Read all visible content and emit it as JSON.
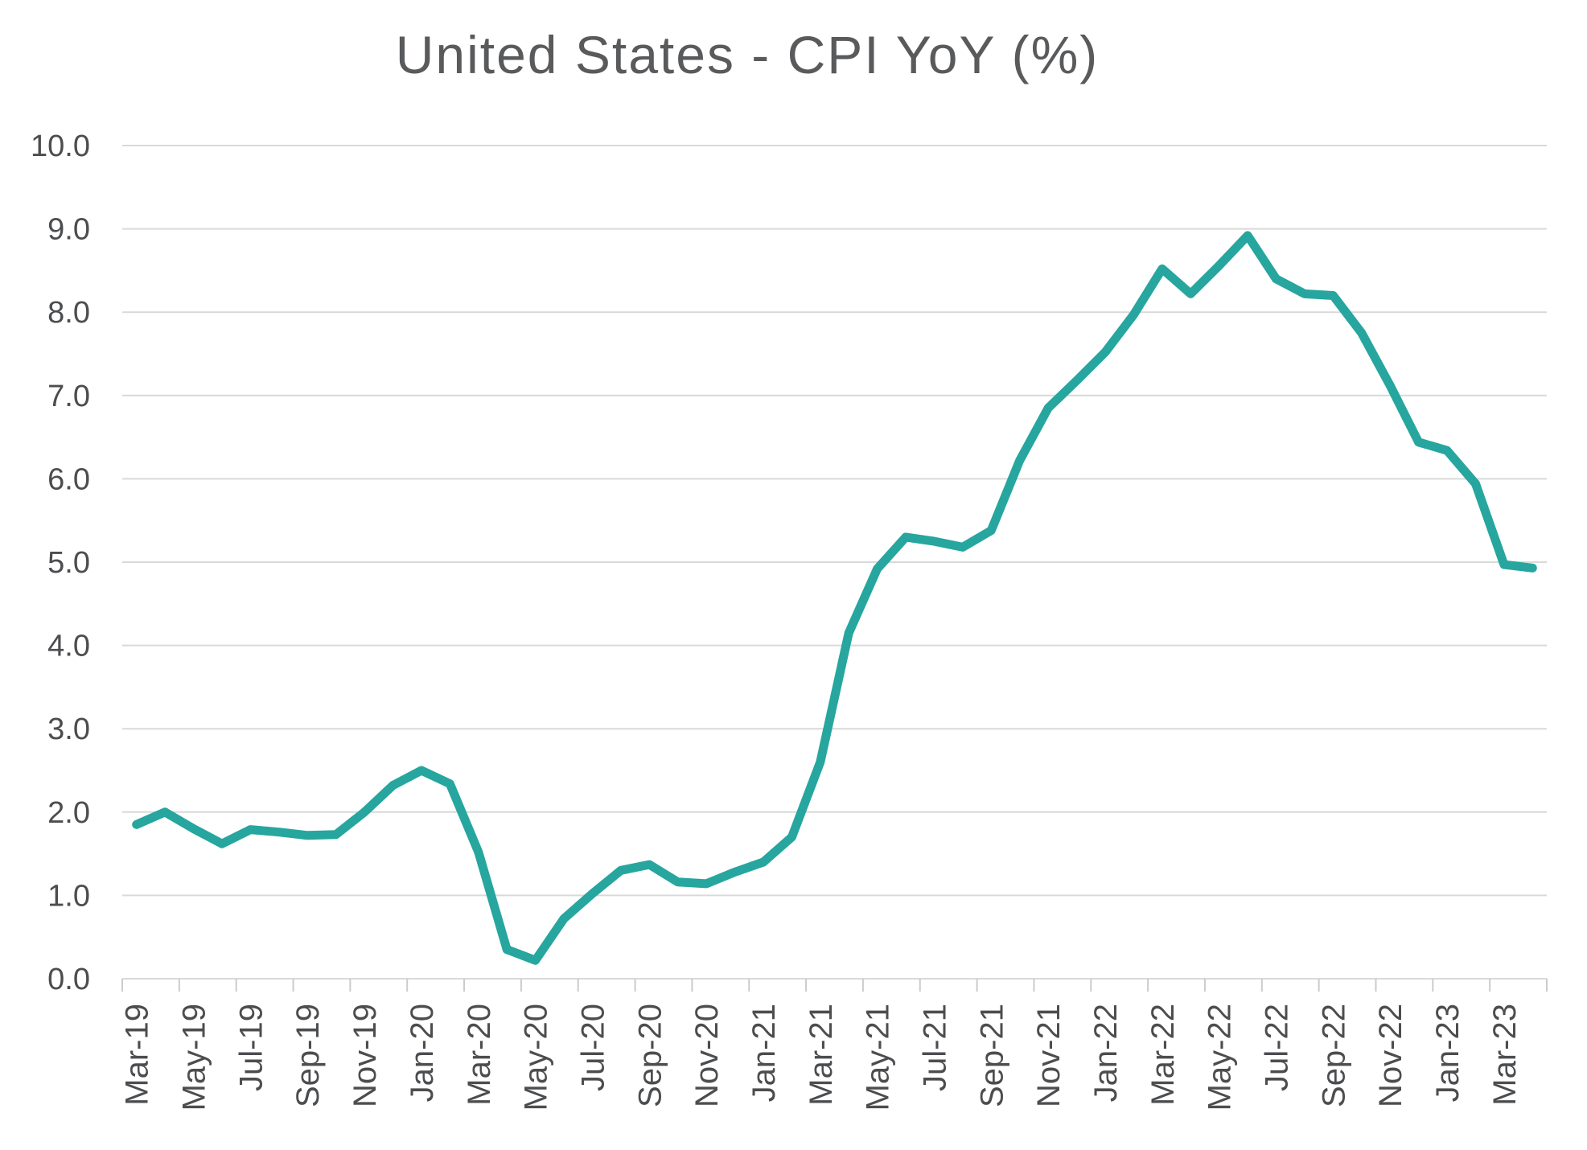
{
  "title": "United States - CPI YoY (%)",
  "colors": {
    "line": "#26a69e",
    "grid": "#d9d9d9",
    "tick": "#cccccc",
    "axis_text": "#4c4d4f",
    "title_text": "#595a5c"
  },
  "chart_data": {
    "type": "line",
    "title": "United States - CPI YoY (%)",
    "xlabel": "",
    "ylabel": "",
    "ylim": [
      0,
      10
    ],
    "ytick_step": 1,
    "grid": true,
    "legend_position": "none",
    "x_tick_every": 2,
    "x": [
      "Mar-19",
      "Apr-19",
      "May-19",
      "Jun-19",
      "Jul-19",
      "Aug-19",
      "Sep-19",
      "Oct-19",
      "Nov-19",
      "Dec-19",
      "Jan-20",
      "Feb-20",
      "Mar-20",
      "Apr-20",
      "May-20",
      "Jun-20",
      "Jul-20",
      "Aug-20",
      "Sep-20",
      "Oct-20",
      "Nov-20",
      "Dec-20",
      "Jan-21",
      "Feb-21",
      "Mar-21",
      "Apr-21",
      "May-21",
      "Jun-21",
      "Jul-21",
      "Aug-21",
      "Sep-21",
      "Oct-21",
      "Nov-21",
      "Dec-21",
      "Jan-22",
      "Feb-22",
      "Mar-22",
      "Apr-22",
      "May-22",
      "Jun-22",
      "Jul-22",
      "Aug-22",
      "Sep-22",
      "Oct-22",
      "Nov-22",
      "Dec-22",
      "Jan-23",
      "Feb-23",
      "Mar-23",
      "Apr-23"
    ],
    "values": [
      1.85,
      2.0,
      1.8,
      1.62,
      1.79,
      1.76,
      1.72,
      1.73,
      2.0,
      2.32,
      2.5,
      2.34,
      1.52,
      0.35,
      0.22,
      0.72,
      1.02,
      1.3,
      1.37,
      1.16,
      1.14,
      1.28,
      1.4,
      1.7,
      2.6,
      4.15,
      4.92,
      5.3,
      5.25,
      5.18,
      5.38,
      6.22,
      6.85,
      7.18,
      7.52,
      7.97,
      8.52,
      8.22,
      8.56,
      8.92,
      8.4,
      8.22,
      8.2,
      7.75,
      7.12,
      6.44,
      6.34,
      5.94,
      4.97,
      4.93
    ],
    "x_tick_labels": [
      "Mar-19",
      "May-19",
      "Jul-19",
      "Sep-19",
      "Nov-19",
      "Jan-20",
      "Mar-20",
      "May-20",
      "Jul-20",
      "Sep-20",
      "Nov-20",
      "Jan-21",
      "Mar-21",
      "May-21",
      "Jul-21",
      "Sep-21",
      "Nov-21",
      "Jan-22",
      "Mar-22",
      "May-22",
      "Jul-22",
      "Sep-22",
      "Nov-22",
      "Jan-23",
      "Mar-23"
    ],
    "y_tick_labels": [
      "0.0",
      "1.0",
      "2.0",
      "3.0",
      "4.0",
      "5.0",
      "6.0",
      "7.0",
      "8.0",
      "9.0",
      "10.0"
    ]
  }
}
